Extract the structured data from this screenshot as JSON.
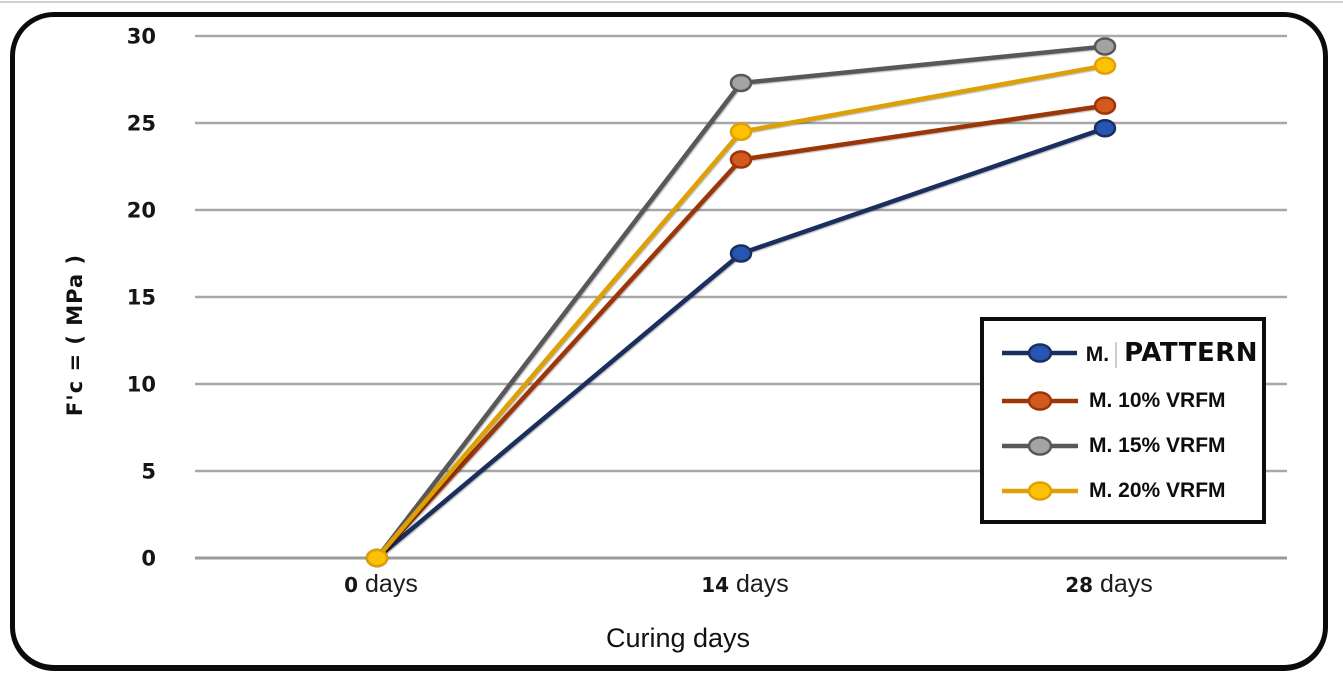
{
  "figure": {
    "kind": "compressive-strength-line-chart",
    "border_color": "#0b0b0b",
    "top_rule_color": "#d6cbd4",
    "background": "#ffffff"
  },
  "chart_data": {
    "type": "line",
    "title": "",
    "xlabel": "Curing days",
    "ylabel": "F'c = (  MPa )",
    "categories": [
      "0 days",
      "14 days",
      "28 days"
    ],
    "y_ticks": [
      0,
      5,
      10,
      15,
      20,
      25,
      30
    ],
    "ylim": [
      0,
      30
    ],
    "grid": "horizontal",
    "grid_color": "#a7a7a7",
    "axis_color": "#9a9a9a",
    "legend_position": "inside-right-middle",
    "series": [
      {
        "name": "M. PATTERN",
        "legend_style": "patched",
        "values": [
          0,
          17.5,
          24.7
        ],
        "line_color": "#1b2f5e",
        "marker_color": "#2557b0"
      },
      {
        "name": "M. 10% VRFM",
        "values": [
          0,
          22.9,
          26.0
        ],
        "line_color": "#9c3608",
        "marker_color": "#d4591d"
      },
      {
        "name": "M. 15% VRFM",
        "values": [
          0,
          27.3,
          29.4
        ],
        "line_color": "#585858",
        "marker_color": "#a3a3a3"
      },
      {
        "name": "M. 20% VRFM",
        "values": [
          0,
          24.5,
          28.3
        ],
        "line_color": "#dfa005",
        "marker_color": "#ffc103"
      }
    ]
  }
}
